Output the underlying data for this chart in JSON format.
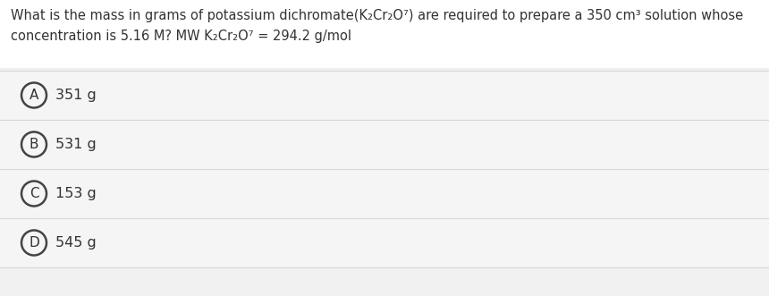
{
  "background_color": "#f0f0f0",
  "question_line1": "What is the mass in grams of potassium dichromate(K₂Cr₂O⁷) are required to prepare a 350 cm³ solution whose",
  "question_line2": "concentration is 5.16 M? MW K₂Cr₂O⁷ = 294.2 g/mol",
  "options": [
    {
      "label": "A",
      "text": "351 g"
    },
    {
      "label": "B",
      "text": "531 g"
    },
    {
      "label": "C",
      "text": "153 g"
    },
    {
      "label": "D",
      "text": "545 g"
    }
  ],
  "option_bg": "#f5f5f5",
  "separator_color": "#d8d8d8",
  "circle_fill": "#f5f5f5",
  "circle_edge": "#444444",
  "text_color": "#333333",
  "font_size_question": 10.5,
  "font_size_option": 11.5,
  "font_size_label": 11.0,
  "fig_width": 8.6,
  "fig_height": 3.31,
  "dpi": 100
}
